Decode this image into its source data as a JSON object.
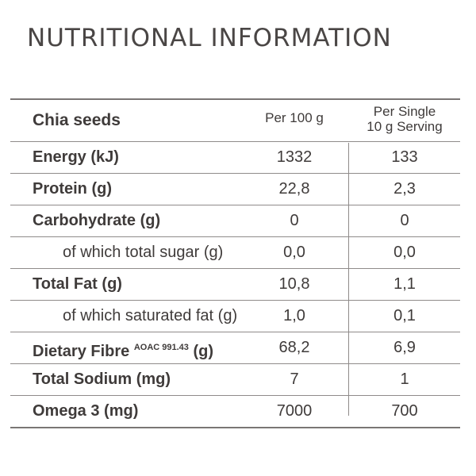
{
  "title": "NUTRITIONAL INFORMATION",
  "table": {
    "header": {
      "name": "Chia seeds",
      "col1": "Per 100 g",
      "col2_line1": "Per Single",
      "col2_line2": "10 g Serving"
    },
    "rows": [
      {
        "label": "Energy (kJ)",
        "per100": "1332",
        "perServing": "133"
      },
      {
        "label": "Protein (g)",
        "per100": "22,8",
        "perServing": "2,3"
      },
      {
        "label": "Carbohydrate (g)",
        "per100": "0",
        "perServing": "0"
      },
      {
        "label": "of which total sugar (g)",
        "per100": "0,0",
        "perServing": "0,0"
      },
      {
        "label": "Total Fat (g)",
        "per100": "10,8",
        "perServing": "1,1"
      },
      {
        "label": "of which saturated fat (g)",
        "per100": "1,0",
        "perServing": "0,1"
      },
      {
        "label": "Dietary Fibre",
        "label_sup": "AOAC 991.43",
        "label_suffix": "(g)",
        "per100": "68,2",
        "perServing": "6,9"
      },
      {
        "label": "Total Sodium (mg)",
        "per100": "7",
        "perServing": "1"
      },
      {
        "label": "Omega 3 (mg)",
        "per100": "7000",
        "perServing": "700"
      }
    ]
  }
}
